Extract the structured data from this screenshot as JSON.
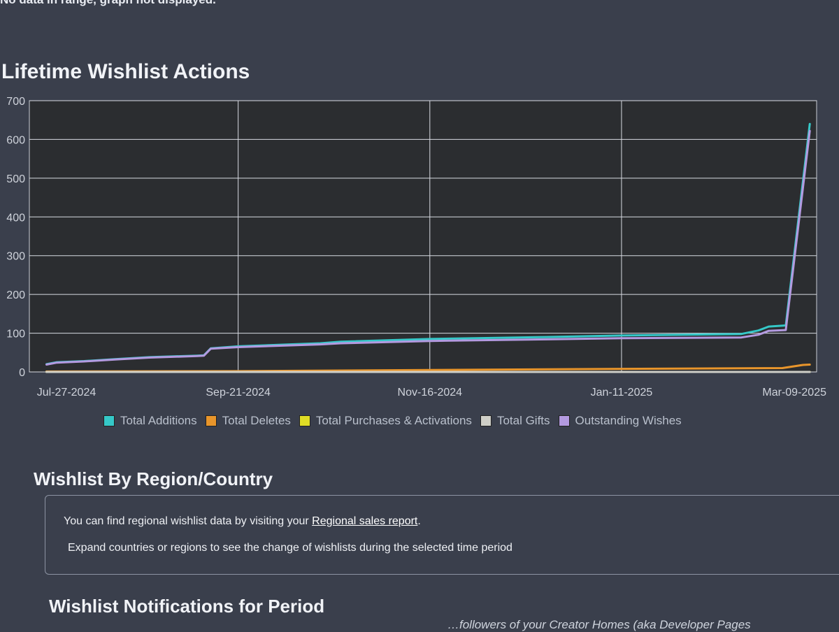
{
  "top_note": "No data in range, graph not displayed.",
  "chart_section_title": "Lifetime Wishlist Actions",
  "chart_data": {
    "type": "line",
    "title": "Lifetime Wishlist Actions",
    "xlabel": "",
    "ylabel": "",
    "ylim": [
      0,
      700
    ],
    "xlim": [
      "2024-07-22",
      "2025-03-09"
    ],
    "x_ticks": [
      "Jul-27-2024",
      "Sep-21-2024",
      "Nov-16-2024",
      "Jan-11-2025",
      "Mar-09-2025"
    ],
    "y_ticks": [
      0,
      100,
      200,
      300,
      400,
      500,
      600,
      700
    ],
    "grid": true,
    "legend_position": "bottom",
    "series": [
      {
        "name": "Total Additions",
        "color": "#35c8c8",
        "points": [
          [
            "2024-07-27",
            20
          ],
          [
            "2024-07-30",
            25
          ],
          [
            "2024-08-07",
            28
          ],
          [
            "2024-08-16",
            33
          ],
          [
            "2024-08-26",
            38
          ],
          [
            "2024-09-09",
            42
          ],
          [
            "2024-09-11",
            43
          ],
          [
            "2024-09-13",
            61
          ],
          [
            "2024-09-21",
            66
          ],
          [
            "2024-10-15",
            74
          ],
          [
            "2024-10-21",
            78
          ],
          [
            "2024-11-16",
            85
          ],
          [
            "2024-12-20",
            90
          ],
          [
            "2025-01-11",
            94
          ],
          [
            "2025-02-15",
            98
          ],
          [
            "2025-02-20",
            107
          ],
          [
            "2025-02-23",
            117
          ],
          [
            "2025-02-28",
            120
          ],
          [
            "2025-03-07",
            640
          ]
        ]
      },
      {
        "name": "Total Deletes",
        "color": "#e8952b",
        "points": [
          [
            "2024-07-27",
            1
          ],
          [
            "2024-09-21",
            2
          ],
          [
            "2024-11-16",
            5
          ],
          [
            "2025-01-11",
            8
          ],
          [
            "2025-02-27",
            10
          ],
          [
            "2025-03-05",
            18
          ],
          [
            "2025-03-07",
            19
          ]
        ]
      },
      {
        "name": "Total Purchases & Activations",
        "color": "#e0dd26",
        "points": [
          [
            "2024-07-27",
            0
          ],
          [
            "2025-03-07",
            0
          ]
        ]
      },
      {
        "name": "Total Gifts",
        "color": "#cfcfc8",
        "points": [
          [
            "2024-07-27",
            0
          ],
          [
            "2025-03-07",
            0
          ]
        ]
      },
      {
        "name": "Outstanding Wishes",
        "color": "#b39ae0",
        "points": [
          [
            "2024-07-27",
            19
          ],
          [
            "2024-07-30",
            24
          ],
          [
            "2024-08-07",
            27
          ],
          [
            "2024-08-16",
            32
          ],
          [
            "2024-08-26",
            37
          ],
          [
            "2024-09-09",
            41
          ],
          [
            "2024-09-11",
            42
          ],
          [
            "2024-09-13",
            60
          ],
          [
            "2024-09-21",
            64
          ],
          [
            "2024-10-15",
            71
          ],
          [
            "2024-10-21",
            74
          ],
          [
            "2024-11-16",
            80
          ],
          [
            "2024-12-20",
            84
          ],
          [
            "2025-01-11",
            87
          ],
          [
            "2025-02-15",
            89
          ],
          [
            "2025-02-20",
            96
          ],
          [
            "2025-02-23",
            106
          ],
          [
            "2025-02-28",
            108
          ],
          [
            "2025-03-07",
            622
          ]
        ]
      }
    ]
  },
  "legend": [
    {
      "label": "Total Additions",
      "color": "#35c8c8"
    },
    {
      "label": "Total Deletes",
      "color": "#e8952b"
    },
    {
      "label": "Total Purchases & Activations",
      "color": "#e0dd26"
    },
    {
      "label": "Total Gifts",
      "color": "#cfcfc8"
    },
    {
      "label": "Outstanding Wishes",
      "color": "#b39ae0"
    }
  ],
  "region_section": {
    "title": "Wishlist By Region/Country",
    "line1_prefix": "You can find regional wishlist data by visiting your ",
    "link_text": "Regional sales report",
    "line1_suffix": ".",
    "line2": "Expand countries or regions to see the change of wishlists during the selected time period"
  },
  "notifications_section": {
    "title": "Wishlist Notifications for Period",
    "trailing_text": "…followers of your Creator Homes (aka Developer Pages"
  }
}
